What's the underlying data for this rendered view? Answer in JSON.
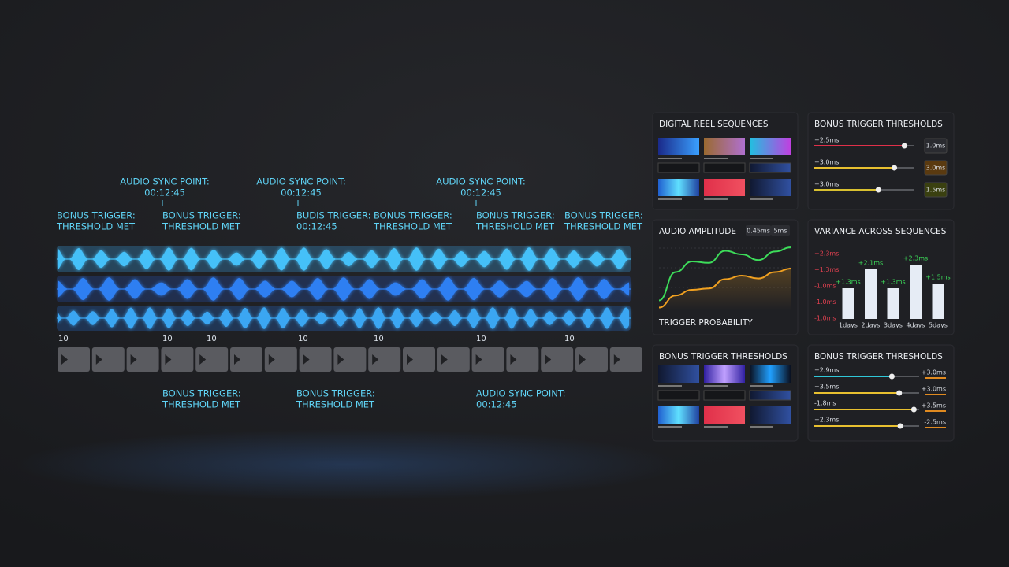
{
  "timeline": {
    "top_annotations": [
      [
        "AUDIO SYNC POINT:",
        "00:12:45"
      ],
      [
        "AUDIO SYNC POINT:",
        "00:12:45"
      ],
      [
        "AUDIO SYNC POINT:",
        "00:12:45"
      ]
    ],
    "mid_annotations": [
      [
        "BONUS TRIGGER:",
        "THRESHOLD MET"
      ],
      [
        "BONUS TRIGGER:",
        "THRESHOLD MET"
      ],
      [
        "BUDIS TRIGGER:",
        "00:12:45"
      ],
      [
        "BONUS TRIGGER:",
        "THRESHOLD MET"
      ],
      [
        "BONUS TRIGGER:",
        "THRESHOLD MET"
      ],
      [
        "BONUS TRIGGER:",
        "THRESHOLD MET"
      ]
    ],
    "bottom_annotations": [
      [
        "BONUS TRIGGER:",
        "THRESHOLD MET"
      ],
      [
        "BONUS TRIGGER:",
        "THRESHOLD MET"
      ],
      [
        "AUDIO SYNC POINT:",
        "00:12:45"
      ]
    ],
    "markers": [
      "10",
      "10",
      "10",
      "10",
      "10",
      "10",
      "10"
    ]
  },
  "reel_sequences": {
    "title": "DIGITAL REEL SEQUENCES"
  },
  "thresholds_top": {
    "title": "BONUS TRIGGER THRESHOLDS",
    "rows": [
      {
        "label": "+2.5ms",
        "value": "1.0ms"
      },
      {
        "label": "+3.0ms",
        "value": "3.0ms"
      },
      {
        "label": "+3.0ms",
        "value": "1.5ms"
      }
    ]
  },
  "amplitude": {
    "title": "AUDIO AMPLITUDE",
    "tabs": [
      "0.45ms",
      "5ms"
    ],
    "footer": "TRIGGER PROBABILITY",
    "ylim": [
      0,
      1
    ],
    "series": [
      {
        "color": "#3ddc5a",
        "values": [
          0.15,
          0.55,
          0.7,
          0.68,
          0.85,
          0.8,
          0.72,
          0.84,
          0.9
        ]
      },
      {
        "color": "#f0a020",
        "values": [
          0.05,
          0.22,
          0.3,
          0.32,
          0.45,
          0.5,
          0.46,
          0.55,
          0.6
        ]
      }
    ]
  },
  "chart_data": {
    "type": "bar",
    "title": "VARIANCE ACROSS SEQUENCES",
    "color": "#e6ecf5",
    "label_color": "#3ddc5a",
    "categories": [
      "1days",
      "2days",
      "3days",
      "4days",
      "5days"
    ],
    "values": [
      1.3,
      2.1,
      1.3,
      2.3,
      1.5
    ],
    "value_labels": [
      "+1.3ms",
      "+2.1ms",
      "+1.3ms",
      "+2.3ms",
      "+1.5ms"
    ],
    "ylim": [
      0,
      3
    ],
    "y_labels": [
      "+2.3ms",
      "+1.3ms",
      "-1.0ms",
      "-1.0ms",
      "-1.0ms"
    ]
  },
  "thumbs_bottom": {
    "title": "BONUS TRIGGER THRESHOLDS"
  },
  "thresholds_bottom": {
    "title": "BONUS TRIGGER THRESHOLDS",
    "rows": [
      {
        "label": "+2.9ms",
        "value": "+3.0ms"
      },
      {
        "label": "+3.5ms",
        "value": "+3.0ms"
      },
      {
        "label": "-1.8ms",
        "value": "+3.5ms"
      },
      {
        "label": "+2.3ms",
        "value": "-2.5ms"
      }
    ]
  }
}
